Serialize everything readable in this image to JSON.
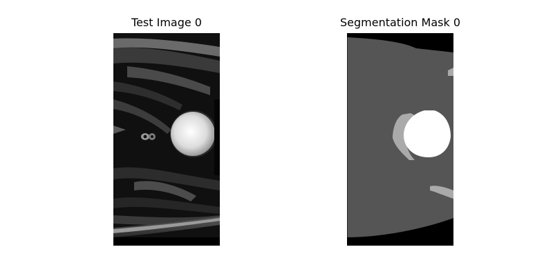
{
  "panels": [
    {
      "title": "Test Image 0",
      "content": "mri-slice"
    },
    {
      "title": "Segmentation Mask 0",
      "content": "segmentation-mask"
    }
  ],
  "colors": {
    "background": "#000000",
    "mri_soft_tissue": "#1e1e1e",
    "mri_bright": "#f2f2f2",
    "mask_background": "#000000",
    "mask_tissue": "#555555",
    "mask_class_2": "#aaaaaa",
    "mask_class_3": "#ffffff"
  }
}
